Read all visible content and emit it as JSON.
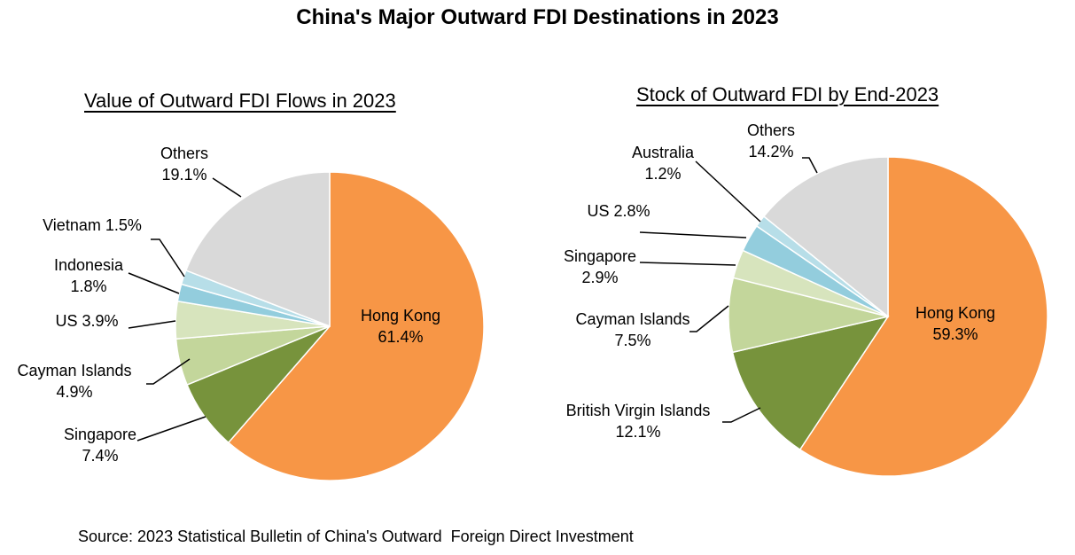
{
  "title": "China's Major Outward FDI Destinations in 2023",
  "source": "Source: 2023 Statistical Bulletin of China's Outward  Foreign Direct Investment",
  "chart_data": [
    {
      "type": "pie",
      "title": "Value of Outward FDI Flows in 2023",
      "unit": "%",
      "slices": [
        {
          "label": "Hong Kong",
          "value": 61.4,
          "text": [
            "Hong Kong",
            "61.4%"
          ],
          "color": "#F79646"
        },
        {
          "label": "Singapore",
          "value": 7.4,
          "text": [
            "Singapore",
            "7.4%"
          ],
          "color": "#77933C"
        },
        {
          "label": "Cayman Islands",
          "value": 4.9,
          "text": [
            "Cayman Islands",
            "4.9%"
          ],
          "color": "#C3D69B"
        },
        {
          "label": "US",
          "value": 3.9,
          "text": [
            "US 3.9%"
          ],
          "color": "#D7E4BD"
        },
        {
          "label": "Indonesia",
          "value": 1.8,
          "text": [
            "Indonesia",
            "1.8%"
          ],
          "color": "#93CDDD"
        },
        {
          "label": "Vietnam",
          "value": 1.5,
          "text": [
            "Vietnam 1.5%"
          ],
          "color": "#B7DEE8"
        },
        {
          "label": "Others",
          "value": 19.1,
          "text": [
            "Others",
            "19.1%"
          ],
          "color": "#D9D9D9"
        }
      ]
    },
    {
      "type": "pie",
      "title": "Stock of Outward FDI by End-2023",
      "unit": "%",
      "slices": [
        {
          "label": "Hong Kong",
          "value": 59.3,
          "text": [
            "Hong Kong",
            "59.3%"
          ],
          "color": "#F79646"
        },
        {
          "label": "British Virgin Islands",
          "value": 12.1,
          "text": [
            "British Virgin Islands",
            "12.1%"
          ],
          "color": "#77933C"
        },
        {
          "label": "Cayman Islands",
          "value": 7.5,
          "text": [
            "Cayman Islands",
            "7.5%"
          ],
          "color": "#C3D69B"
        },
        {
          "label": "Singapore",
          "value": 2.9,
          "text": [
            "Singapore",
            "2.9%"
          ],
          "color": "#D7E4BD"
        },
        {
          "label": "US",
          "value": 2.8,
          "text": [
            "US 2.8%"
          ],
          "color": "#93CDDD"
        },
        {
          "label": "Australia",
          "value": 1.2,
          "text": [
            "Australia",
            "1.2%"
          ],
          "color": "#B7DEE8"
        },
        {
          "label": "Others",
          "value": 14.2,
          "text": [
            "Others",
            "14.2%"
          ],
          "color": "#D9D9D9"
        }
      ]
    }
  ]
}
